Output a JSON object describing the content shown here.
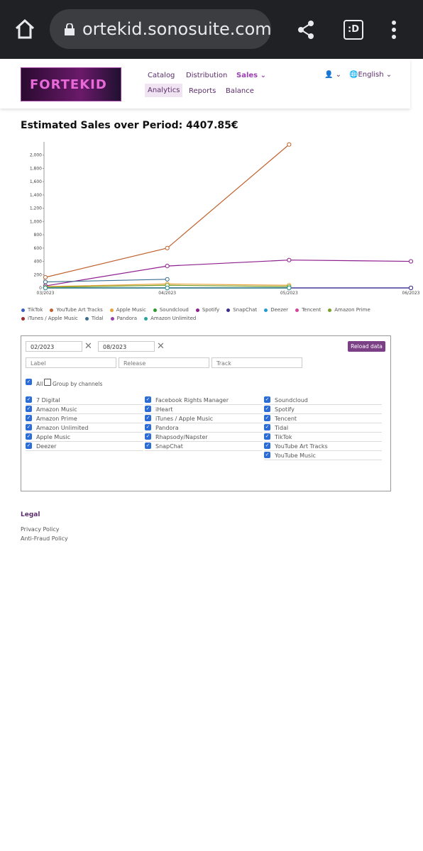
{
  "browser": {
    "url": "ortekid.sonosuite.com",
    "tabs": ":D"
  },
  "nav": {
    "logo": "FORTEKID",
    "links": [
      "Catalog",
      "Distribution",
      "Sales",
      "Analytics",
      "Reports",
      "Balance"
    ],
    "language": "English"
  },
  "chart_data": {
    "type": "line",
    "title": "Estimated Sales over Period: 4407.85€",
    "categories": [
      "03/2023",
      "04/2023",
      "05/2023",
      "06/2023"
    ],
    "ylim": [
      0,
      2200
    ],
    "yticks": [
      0,
      200,
      400,
      600,
      800,
      {
        "value": 1000,
        "label": "1,000"
      },
      {
        "value": 1200,
        "label": "1,200"
      },
      {
        "value": 1400,
        "label": "1,400"
      },
      {
        "value": 1600,
        "label": "1,600"
      },
      {
        "value": 1800,
        "label": "1,800"
      },
      {
        "value": 2000,
        "label": "2,000"
      }
    ],
    "series": [
      {
        "name": "TikTok",
        "color": "#3b5fc0",
        "values": [
          0,
          0,
          0,
          0
        ]
      },
      {
        "name": "YouTube Art Tracks",
        "color": "#c0622f",
        "values": [
          160,
          600,
          2160,
          null
        ]
      },
      {
        "name": "Apple Music",
        "color": "#e8a23a",
        "values": [
          20,
          60,
          40,
          null
        ]
      },
      {
        "name": "Soundcloud",
        "color": "#2e9b2e",
        "values": [
          0,
          0,
          0,
          null
        ]
      },
      {
        "name": "Spotify",
        "color": "#8e1e8e",
        "values": [
          30,
          330,
          420,
          400
        ]
      },
      {
        "name": "SnapChat",
        "color": "#3d2b8f",
        "values": [
          0,
          0,
          0,
          0
        ]
      },
      {
        "name": "Deezer",
        "color": "#1f9bd1",
        "values": [
          0,
          0,
          0,
          null
        ]
      },
      {
        "name": "Tencent",
        "color": "#d6459a",
        "values": [
          0,
          0,
          0,
          null
        ]
      },
      {
        "name": "Amazon Prime",
        "color": "#7aa12a",
        "values": [
          10,
          40,
          20,
          null
        ]
      },
      {
        "name": "iTunes / Apple Music",
        "color": "#9e2b2b",
        "values": [
          0,
          0,
          0,
          null
        ]
      },
      {
        "name": "Tidal",
        "color": "#3c6e8f",
        "values": [
          90,
          130,
          null,
          null
        ]
      },
      {
        "name": "Pandora",
        "color": "#9b3fb0",
        "values": [
          0,
          0,
          0,
          null
        ]
      },
      {
        "name": "Amazon Unlimited",
        "color": "#26a69a",
        "values": [
          0,
          0,
          0,
          null
        ]
      }
    ]
  },
  "filters": {
    "from": "02/2023",
    "to": "08/2023",
    "reload": "Reload data",
    "placeholders": [
      "Label",
      "Release",
      "Track"
    ],
    "all": "All",
    "group": "Group by channels",
    "channels": [
      [
        "7 Digital",
        "Amazon Music",
        "Amazon Prime",
        "Amazon Unlimited",
        "Apple Music",
        "Deezer"
      ],
      [
        "Facebook Rights Manager",
        "iHeart",
        "iTunes / Apple Music",
        "Pandora",
        "Rhapsody/Napster",
        "SnapChat"
      ],
      [
        "Soundcloud",
        "Spotify",
        "Tencent",
        "Tidal",
        "TikTok",
        "YouTube Art Tracks",
        "YouTube Music"
      ]
    ]
  },
  "legal": {
    "title": "Legal",
    "links": [
      "Privacy Policy",
      "Anti-Fraud Policy"
    ]
  }
}
